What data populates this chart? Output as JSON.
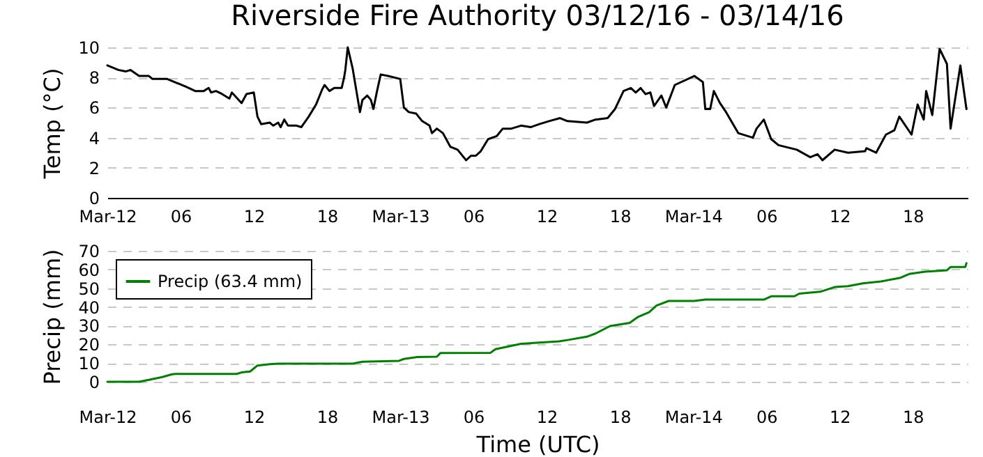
{
  "chart_data": [
    {
      "type": "line",
      "title": "Riverside Fire Authority 03/12/16 - 03/14/16",
      "ylabel": "Temp (°C)",
      "grid": "y",
      "xlim": [
        "--03-12T00:00",
        "--03-14T22:30"
      ],
      "xticks": [
        {
          "value": "--03-12T00:00",
          "label": "Mar-12"
        },
        {
          "value": "--03-12T06:00",
          "label": "06"
        },
        {
          "value": "--03-12T12:00",
          "label": "12"
        },
        {
          "value": "--03-12T18:00",
          "label": "18"
        },
        {
          "value": "--03-13T00:00",
          "label": "Mar-13"
        },
        {
          "value": "--03-13T06:00",
          "label": "06"
        },
        {
          "value": "--03-13T12:00",
          "label": "12"
        },
        {
          "value": "--03-13T18:00",
          "label": "18"
        },
        {
          "value": "--03-14T00:00",
          "label": "Mar-14"
        },
        {
          "value": "--03-14T06:00",
          "label": "06"
        },
        {
          "value": "--03-14T12:00",
          "label": "12"
        },
        {
          "value": "--03-14T18:00",
          "label": "18"
        }
      ],
      "ylim": [
        0,
        10
      ],
      "yticks": [
        0,
        2,
        4,
        6,
        8,
        10
      ],
      "series": [
        {
          "color": "#000000",
          "x": [
            "--03-12T00:00",
            "--03-12T00:54",
            "--03-12T01:30",
            "--03-12T01:54",
            "--03-12T02:36",
            "--03-12T03:24",
            "--03-12T03:42",
            "--03-12T04:54",
            "--03-12T06:24",
            "--03-12T07:12",
            "--03-12T07:54",
            "--03-12T08:18",
            "--03-12T08:30",
            "--03-12T08:54",
            "--03-12T09:24",
            "--03-12T10:00",
            "--03-12T10:12",
            "--03-12T11:00",
            "--03-12T11:24",
            "--03-12T12:00",
            "--03-12T12:18",
            "--03-12T12:36",
            "--03-12T13:18",
            "--03-12T13:36",
            "--03-12T14:00",
            "--03-12T14:12",
            "--03-12T14:30",
            "--03-12T14:48",
            "--03-12T15:30",
            "--03-12T15:54",
            "--03-12T16:30",
            "--03-12T17:06",
            "--03-12T17:36",
            "--03-12T17:48",
            "--03-12T18:12",
            "--03-12T18:36",
            "--03-12T19:12",
            "--03-12T19:24",
            "--03-12T19:30",
            "--03-12T19:42",
            "--03-12T20:06",
            "--03-12T20:42",
            "--03-12T20:54",
            "--03-12T21:18",
            "--03-12T21:36",
            "--03-12T21:48",
            "--03-12T22:06",
            "--03-12T22:24",
            "--03-12T23:00",
            "--03-13T00:00",
            "--03-13T00:18",
            "--03-13T00:42",
            "--03-13T01:18",
            "--03-13T01:48",
            "--03-13T02:24",
            "--03-13T02:36",
            "--03-13T03:00",
            "--03-13T03:30",
            "--03-13T04:06",
            "--03-13T04:42",
            "--03-13T05:18",
            "--03-13T05:24",
            "--03-13T05:48",
            "--03-13T06:12",
            "--03-13T06:36",
            "--03-13T07:12",
            "--03-13T07:54",
            "--03-13T08:24",
            "--03-13T09:06",
            "--03-13T09:54",
            "--03-13T10:42",
            "--03-13T11:24",
            "--03-13T12:12",
            "--03-13T13:06",
            "--03-13T13:42",
            "--03-13T15:18",
            "--03-13T16:00",
            "--03-13T17:00",
            "--03-13T17:36",
            "--03-13T18:18",
            "--03-13T18:54",
            "--03-13T19:18",
            "--03-13T19:42",
            "--03-13T20:06",
            "--03-13T20:30",
            "--03-13T20:48",
            "--03-13T21:24",
            "--03-13T21:48",
            "--03-13T22:30",
            "--03-14T00:06",
            "--03-14T00:48",
            "--03-14T01:00",
            "--03-14T01:24",
            "--03-14T01:42",
            "--03-14T02:12",
            "--03-14T02:42",
            "--03-14T03:42",
            "--03-14T04:54",
            "--03-14T05:12",
            "--03-14T05:48",
            "--03-14T06:24",
            "--03-14T07:00",
            "--03-14T08:30",
            "--03-14T09:36",
            "--03-14T10:12",
            "--03-14T10:36",
            "--03-14T11:36",
            "--03-14T12:42",
            "--03-14T14:06",
            "--03-14T14:12",
            "--03-14T15:00",
            "--03-14T15:48",
            "--03-14T16:30",
            "--03-14T16:54",
            "--03-14T17:54",
            "--03-14T18:24",
            "--03-14T18:54",
            "--03-14T19:06",
            "--03-14T19:36",
            "--03-14T20:12",
            "--03-14T20:48",
            "--03-14T21:06",
            "--03-14T21:54",
            "--03-14T22:24"
          ],
          "values": [
            8.8,
            8.5,
            8.4,
            8.5,
            8.1,
            8.1,
            7.9,
            7.9,
            7.4,
            7.1,
            7.1,
            7.3,
            7.0,
            7.1,
            6.9,
            6.6,
            7.0,
            6.3,
            6.9,
            7.0,
            5.4,
            4.9,
            5.0,
            4.8,
            5.0,
            4.7,
            5.2,
            4.8,
            4.8,
            4.7,
            5.4,
            6.2,
            7.2,
            7.5,
            7.1,
            7.3,
            7.3,
            8.0,
            8.5,
            10.0,
            8.6,
            5.7,
            6.5,
            6.8,
            6.5,
            5.9,
            7.1,
            8.2,
            8.1,
            7.9,
            6.0,
            5.7,
            5.6,
            5.1,
            4.8,
            4.3,
            4.6,
            4.3,
            3.4,
            3.2,
            2.6,
            2.5,
            2.8,
            2.8,
            3.1,
            3.9,
            4.1,
            4.6,
            4.6,
            4.8,
            4.7,
            4.9,
            5.1,
            5.3,
            5.1,
            5.0,
            5.2,
            5.3,
            5.9,
            7.1,
            7.3,
            7.0,
            7.3,
            6.9,
            7.0,
            6.1,
            6.8,
            6.0,
            7.5,
            8.1,
            7.7,
            5.9,
            5.9,
            7.1,
            6.3,
            5.7,
            4.3,
            4.0,
            4.6,
            5.2,
            3.9,
            3.5,
            3.2,
            2.7,
            2.9,
            2.5,
            3.2,
            3.0,
            3.1,
            3.3,
            3.0,
            4.2,
            4.5,
            5.4,
            4.2,
            6.2,
            5.2,
            7.1,
            5.5,
            9.9,
            8.9,
            4.6,
            8.8,
            5.9
          ]
        }
      ]
    },
    {
      "type": "line",
      "xlabel": "Time (UTC)",
      "ylabel": "Precip (mm)",
      "grid": "y",
      "legend": "top left",
      "xlim": [
        "--03-12T00:00",
        "--03-14T22:30"
      ],
      "xticks": [
        {
          "value": "--03-12T00:00",
          "label": "Mar-12"
        },
        {
          "value": "--03-12T06:00",
          "label": "06"
        },
        {
          "value": "--03-12T12:00",
          "label": "12"
        },
        {
          "value": "--03-12T18:00",
          "label": "18"
        },
        {
          "value": "--03-13T00:00",
          "label": "Mar-13"
        },
        {
          "value": "--03-13T06:00",
          "label": "06"
        },
        {
          "value": "--03-13T12:00",
          "label": "12"
        },
        {
          "value": "--03-13T18:00",
          "label": "18"
        },
        {
          "value": "--03-14T00:00",
          "label": "Mar-14"
        },
        {
          "value": "--03-14T06:00",
          "label": "06"
        },
        {
          "value": "--03-14T12:00",
          "label": "12"
        },
        {
          "value": "--03-14T18:00",
          "label": "18"
        }
      ],
      "ylim": [
        0,
        70
      ],
      "yticks": [
        0,
        10,
        20,
        30,
        40,
        50,
        60,
        70
      ],
      "series": [
        {
          "name": "Precip (63.4 mm)",
          "color": "#008000",
          "x": [
            "--03-12T00:00",
            "--03-12T02:36",
            "--03-12T03:24",
            "--03-12T04:30",
            "--03-12T05:18",
            "--03-12T05:36",
            "--03-12T10:36",
            "--03-12T11:00",
            "--03-12T11:42",
            "--03-12T12:18",
            "--03-12T13:18",
            "--03-12T14:00",
            "--03-12T20:06",
            "--03-12T20:54",
            "--03-12T23:54",
            "--03-13T00:18",
            "--03-13T01:24",
            "--03-13T03:00",
            "--03-13T03:18",
            "--03-13T07:24",
            "--03-13T07:48",
            "--03-13T09:54",
            "--03-13T13:00",
            "--03-13T13:42",
            "--03-13T15:18",
            "--03-13T16:00",
            "--03-13T17:12",
            "--03-13T18:48",
            "--03-13T19:30",
            "--03-13T20:24",
            "--03-13T21:00",
            "--03-13T22:00",
            "--03-14T00:06",
            "--03-14T01:00",
            "--03-14T05:48",
            "--03-14T06:24",
            "--03-14T08:18",
            "--03-14T08:42",
            "--03-14T10:24",
            "--03-14T11:36",
            "--03-14T12:42",
            "--03-14T13:54",
            "--03-14T15:24",
            "--03-14T17:00",
            "--03-14T17:42",
            "--03-14T19:00",
            "--03-14T20:48",
            "--03-14T21:06",
            "--03-14T22:18",
            "--03-14T22:24"
          ],
          "values": [
            0,
            0,
            1.0,
            2.5,
            4.0,
            4.2,
            4.2,
            5.0,
            5.5,
            8.7,
            9.4,
            9.7,
            9.7,
            10.7,
            11.2,
            12.2,
            13.2,
            13.4,
            15.4,
            15.5,
            17.4,
            20.3,
            21.6,
            22.3,
            24.1,
            25.8,
            29.8,
            31.5,
            34.7,
            37.2,
            40.7,
            43.2,
            43.2,
            43.9,
            43.9,
            45.7,
            45.7,
            47.1,
            48.1,
            50.6,
            51.1,
            52.6,
            53.6,
            55.6,
            57.6,
            58.8,
            59.6,
            61.3,
            61.3,
            63.4
          ]
        }
      ]
    }
  ]
}
